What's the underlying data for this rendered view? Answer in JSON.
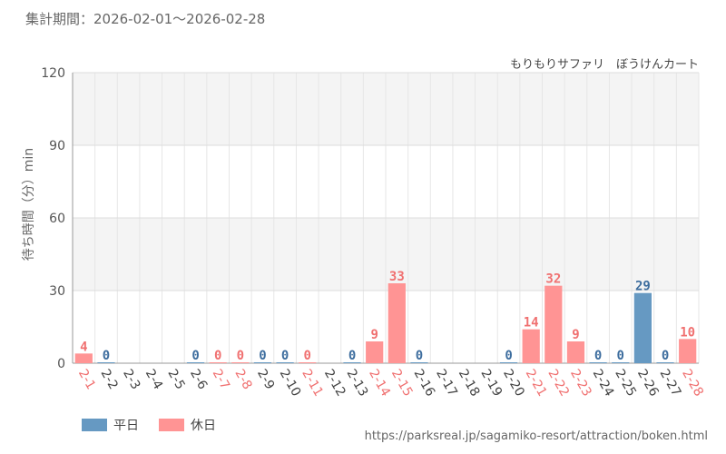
{
  "period_label": "集計期間：2026-02-01〜2026-02-28",
  "subtitle": "もりもりサファリ　ぼうけんカート",
  "source": "https://parksreal.jp/sagamiko-resort/attraction/boken.html",
  "colors": {
    "weekday": "#6699c2",
    "holiday": "#ff9494",
    "label_weekday": "#3d6d9e",
    "label_holiday": "#f07070"
  },
  "legend": [
    {
      "label": "平日",
      "color_key": "weekday"
    },
    {
      "label": "休日",
      "color_key": "holiday"
    }
  ],
  "chart_data": {
    "type": "bar",
    "ylabel": "待ち時間（分）min",
    "ylim": [
      0,
      120
    ],
    "yticks": [
      "0",
      "30",
      "60",
      "90",
      "120"
    ],
    "grid": true,
    "categories": [
      "2-1",
      "2-2",
      "2-3",
      "2-4",
      "2-5",
      "2-6",
      "2-7",
      "2-8",
      "2-9",
      "2-10",
      "2-11",
      "2-12",
      "2-13",
      "2-14",
      "2-15",
      "2-16",
      "2-17",
      "2-18",
      "2-19",
      "2-20",
      "2-21",
      "2-22",
      "2-23",
      "2-24",
      "2-25",
      "2-26",
      "2-27",
      "2-28"
    ],
    "values": [
      4,
      0,
      null,
      null,
      null,
      0,
      0,
      0,
      0,
      0,
      0,
      null,
      0,
      9,
      33,
      0,
      null,
      null,
      null,
      0,
      14,
      32,
      9,
      0,
      0,
      29,
      0,
      10
    ],
    "day_type": [
      "holiday",
      "weekday",
      "weekday",
      "weekday",
      "weekday",
      "weekday",
      "holiday",
      "holiday",
      "weekday",
      "weekday",
      "holiday",
      "weekday",
      "weekday",
      "holiday",
      "holiday",
      "weekday",
      "weekday",
      "weekday",
      "weekday",
      "weekday",
      "holiday",
      "holiday",
      "holiday",
      "weekday",
      "weekday",
      "weekday",
      "weekday",
      "holiday"
    ]
  }
}
